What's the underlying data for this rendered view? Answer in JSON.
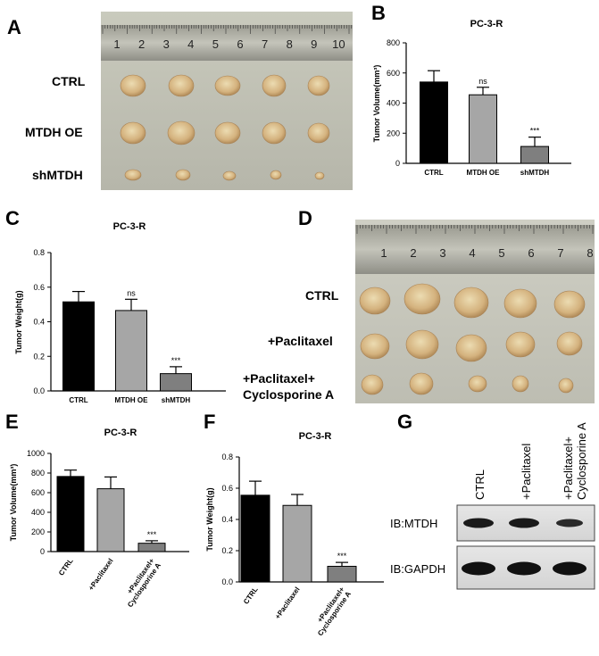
{
  "panels": {
    "A": {
      "letter": "A",
      "ruler_numbers": [
        "1",
        "2",
        "3",
        "4",
        "5",
        "6",
        "7",
        "8",
        "9",
        "10"
      ],
      "rows": [
        "CTRL",
        "MTDH OE",
        "shMTDH"
      ]
    },
    "D": {
      "letter": "D",
      "ruler_numbers": [
        "1",
        "2",
        "3",
        "4",
        "5",
        "6",
        "7",
        "8"
      ],
      "rows": [
        "CTRL",
        "+Paclitaxel",
        "+Paclitaxel+",
        "Cyclosporine A"
      ]
    },
    "G": {
      "letter": "G",
      "lanes": [
        "CTRL",
        "+Paclitaxel",
        "+Paclitaxel+",
        "Cyclosporine A"
      ],
      "blots": [
        "IB:MTDH",
        "IB:GAPDH"
      ]
    }
  },
  "chart_data": [
    {
      "panel": "B",
      "type": "bar",
      "title": "PC-3-R",
      "ylabel": "Tumor Volume(mm³)",
      "categories": [
        "CTRL",
        "MTDH OE",
        "shMTDH"
      ],
      "values": [
        540,
        455,
        112
      ],
      "errors": [
        75,
        50,
        62
      ],
      "annotations": [
        "",
        "ns",
        "***"
      ],
      "colors": [
        "#000000",
        "#a6a6a6",
        "#7f7f7f"
      ],
      "ylim": [
        0,
        800
      ],
      "yticks": [
        "0",
        "200",
        "400",
        "600",
        "800"
      ]
    },
    {
      "panel": "C",
      "type": "bar",
      "title": "PC-3-R",
      "ylabel": "Tumor Weight(g)",
      "categories": [
        "CTRL",
        "MTDH OE",
        "shMTDH"
      ],
      "values": [
        0.515,
        0.465,
        0.1
      ],
      "errors": [
        0.06,
        0.065,
        0.04
      ],
      "annotations": [
        "",
        "ns",
        "***"
      ],
      "colors": [
        "#000000",
        "#a6a6a6",
        "#7f7f7f"
      ],
      "ylim": [
        0,
        0.8
      ],
      "yticks": [
        "0.0",
        "0.2",
        "0.4",
        "0.6",
        "0.8"
      ]
    },
    {
      "panel": "E",
      "type": "bar",
      "title": "PC-3-R",
      "ylabel": "Tumor Volume(mm³)",
      "categories": [
        "CTRL",
        "+Paclitaxel",
        "+Paclitaxel+\nCyclosporine A"
      ],
      "values": [
        765,
        640,
        85
      ],
      "errors": [
        65,
        120,
        25
      ],
      "annotations": [
        "",
        "",
        "***"
      ],
      "colors": [
        "#000000",
        "#a6a6a6",
        "#7f7f7f"
      ],
      "ylim": [
        0,
        1000
      ],
      "yticks": [
        "0",
        "200",
        "400",
        "600",
        "800",
        "1000"
      ]
    },
    {
      "panel": "F",
      "type": "bar",
      "title": "PC-3-R",
      "ylabel": "Tumor Weight(g)",
      "categories": [
        "CTRL",
        "+Paclitaxel",
        "+Paclitaxel+\nCyclosporine A"
      ],
      "values": [
        0.555,
        0.49,
        0.1
      ],
      "errors": [
        0.09,
        0.07,
        0.025
      ],
      "annotations": [
        "",
        "",
        "***"
      ],
      "colors": [
        "#000000",
        "#a6a6a6",
        "#7f7f7f"
      ],
      "ylim": [
        0,
        0.8
      ],
      "yticks": [
        "0.0",
        "0.2",
        "0.4",
        "0.6",
        "0.8"
      ]
    }
  ]
}
